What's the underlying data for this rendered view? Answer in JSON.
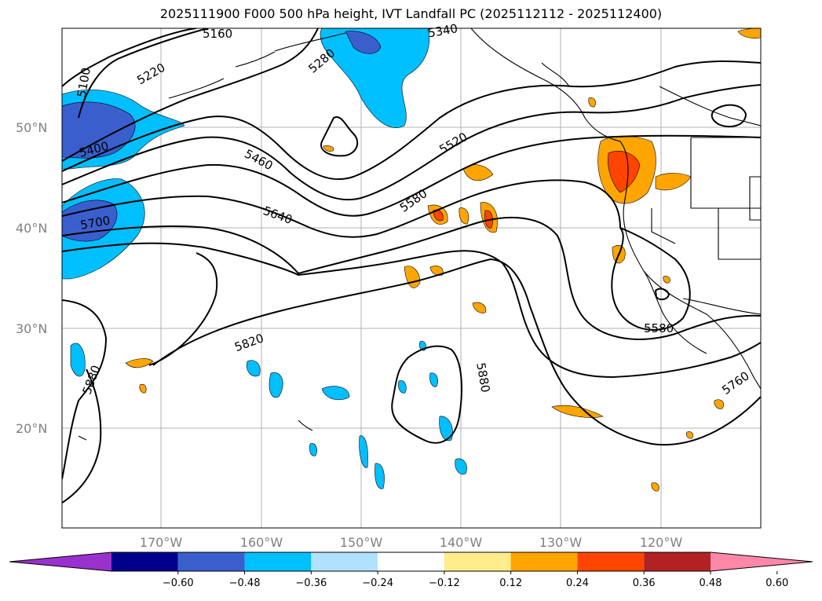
{
  "title": "2025111900 F000 500 hPa height, IVT Landfall PC (2025112112 - 2025112400)",
  "lat_labels": [
    "50°N",
    "40°N",
    "30°N",
    "20°N"
  ],
  "lon_labels": [
    "170°W",
    "160°W",
    "150°W",
    "140°W",
    "130°W",
    "120°W"
  ],
  "colorbar": {
    "ticks": [
      "−0.60",
      "−0.48",
      "−0.36",
      "−0.24",
      "−0.12",
      "0.12",
      "0.24",
      "0.36",
      "0.48",
      "0.60"
    ],
    "colors": [
      "#9932cc",
      "#00008b",
      "#3a5fcd",
      "#00bfff",
      "#b0e2ff",
      "#ffffff",
      "#ffec8b",
      "#ffa500",
      "#ff4500",
      "#b22222",
      "#ff88a8"
    ]
  },
  "contour_labels": [
    "5100",
    "5220",
    "5160",
    "5340",
    "5280",
    "5400",
    "5460",
    "5520",
    "5580",
    "5640",
    "5700",
    "5820",
    "5880",
    "5880",
    "5580",
    "5760"
  ],
  "colors": {
    "land_line": "#000000",
    "grid": "#b0b0b0",
    "contour": "#000000"
  }
}
